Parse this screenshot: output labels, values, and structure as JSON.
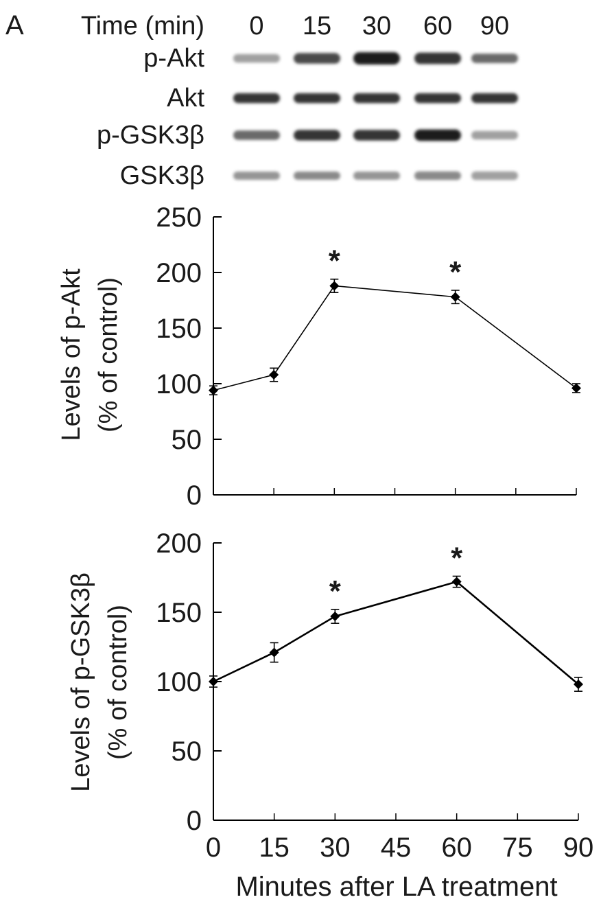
{
  "panel_label": "A",
  "blot": {
    "time_header": "Time (min)",
    "time_points": [
      "0",
      "15",
      "30",
      "60",
      "90"
    ],
    "rows": [
      {
        "label": "p-Akt",
        "intensity": [
          0.35,
          0.75,
          0.95,
          0.85,
          0.6
        ],
        "thickness": [
          0.55,
          0.8,
          1.0,
          0.9,
          0.65
        ]
      },
      {
        "label": "Akt",
        "intensity": [
          0.85,
          0.85,
          0.85,
          0.85,
          0.85
        ],
        "thickness": [
          0.7,
          0.7,
          0.7,
          0.7,
          0.7
        ]
      },
      {
        "label": "p-GSK3β",
        "intensity": [
          0.6,
          0.85,
          0.85,
          0.95,
          0.35
        ],
        "thickness": [
          0.65,
          0.8,
          0.8,
          0.9,
          0.55
        ]
      },
      {
        "label": "GSK3β",
        "intensity": [
          0.4,
          0.45,
          0.4,
          0.45,
          0.35
        ],
        "thickness": [
          0.5,
          0.5,
          0.5,
          0.55,
          0.55
        ]
      }
    ]
  },
  "chart_data": [
    {
      "type": "line",
      "ylabel_line1": "Levels of p-Akt",
      "ylabel_line2": "(% of control)",
      "x": [
        0,
        15,
        30,
        60,
        90
      ],
      "values": [
        94,
        108,
        188,
        178,
        96
      ],
      "errors": [
        4,
        6,
        6,
        6,
        4
      ],
      "significant": [
        false,
        false,
        true,
        true,
        false
      ],
      "significance_marker": "*",
      "xlim": [
        0,
        90
      ],
      "x_ticks": [
        0,
        15,
        30,
        45,
        60,
        75,
        90
      ],
      "show_x_tick_labels": false,
      "ylim": [
        0,
        250
      ],
      "y_ticks": [
        0,
        50,
        100,
        150,
        200,
        250
      ],
      "grid": false
    },
    {
      "type": "line",
      "ylabel_line1": "Levels of p-GSK3β",
      "ylabel_line2": "(% of control)",
      "xlabel": "Minutes after LA treatment",
      "x": [
        0,
        15,
        30,
        60,
        90
      ],
      "values": [
        100,
        121,
        147,
        172,
        98
      ],
      "errors": [
        4,
        7,
        5,
        4,
        5
      ],
      "significant": [
        false,
        false,
        true,
        true,
        false
      ],
      "significance_marker": "*",
      "xlim": [
        0,
        90
      ],
      "x_ticks": [
        0,
        15,
        30,
        45,
        60,
        75,
        90
      ],
      "show_x_tick_labels": true,
      "ylim": [
        0,
        200
      ],
      "y_ticks": [
        0,
        50,
        100,
        150,
        200
      ],
      "grid": false
    }
  ]
}
